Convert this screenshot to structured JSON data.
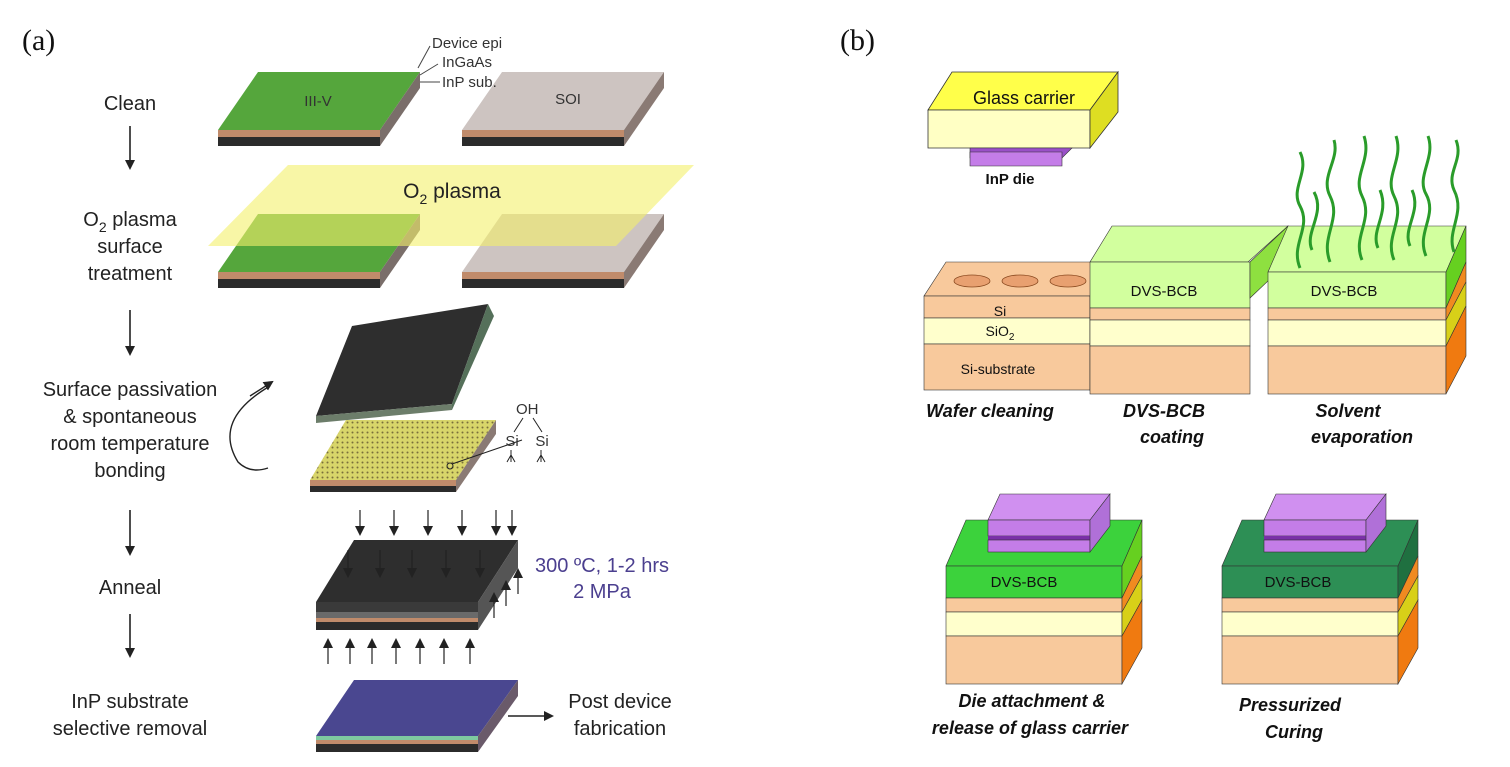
{
  "panel_a": {
    "tag": "(a)",
    "steps": {
      "clean": "Clean",
      "o2_line1_main": "O",
      "o2_line1_sub": "2",
      "o2_line1_rest": " plasma",
      "o2_line2": "surface",
      "o2_line3": "treatment",
      "passivation_line1": "Surface passivation",
      "passivation_line2": "& spontaneous",
      "passivation_line3": "room temperature",
      "passivation_line4": "bonding",
      "anneal": "Anneal",
      "removal_line1": "InP substrate",
      "removal_line2": "selective removal"
    },
    "layer_labels": {
      "device_epi": "Device epi",
      "ingaas": "InGaAs",
      "inp_sub": "InP sub."
    },
    "wafer_labels": {
      "iiiv": "III-V",
      "soi": "SOI"
    },
    "plasma_label_main": "O",
    "plasma_label_sub": "2",
    "plasma_label_rest": " plasma",
    "chem": {
      "oh": "OH",
      "si_left": "Si",
      "si_right": "Si"
    },
    "anneal_cond_line1": "300 ºC, 1-2 hrs",
    "anneal_cond_line2": "2 MPa",
    "post_line1": "Post device",
    "post_line2": "fabrication",
    "colors": {
      "iiiv_green": "#55a63c",
      "soi_gray": "#cdc4c1",
      "plasma_yellow": "#f4f06a",
      "wafer_dark": "#2b2b2b",
      "final_blue": "#4a4790",
      "anneal_text": "#4b3f8f"
    }
  },
  "panel_b": {
    "tag": "(b)",
    "glass_carrier": "Glass carrier",
    "inp_die": "InP die",
    "layers": {
      "si": "Si",
      "sio2_main": "SiO",
      "sio2_sub": "2",
      "substrate": "Si-substrate"
    },
    "dvs_bcb": "DVS-BCB",
    "captions": {
      "wafer_cleaning": "Wafer cleaning",
      "coating_line1": "DVS-BCB",
      "coating_line2": "coating",
      "solvent_line1": "Solvent",
      "solvent_line2": "evaporation",
      "die_line1": "Die attachment &",
      "die_line2": "release of glass carrier",
      "curing_line1": "Pressurized",
      "curing_line2": "Curing"
    },
    "colors": {
      "glass_yellow": "#ffffc4",
      "glass_side": "#dede22",
      "die_purple": "#c47de8",
      "substrate_peach": "#f8c99c",
      "sio2_cream": "#ffffcc",
      "bcb_light": "#d2ff9e",
      "bcb_green": "#3cd23c",
      "bcb_dark": "#2d8f55",
      "side_orange": "#f07a10",
      "vapor_green": "#2a9c2a"
    }
  }
}
